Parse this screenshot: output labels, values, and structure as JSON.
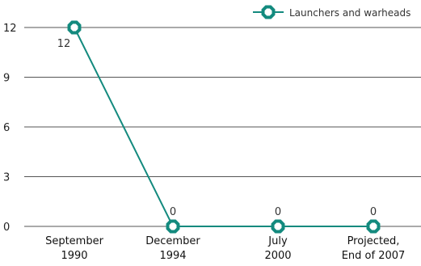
{
  "chart_data": {
    "type": "line",
    "title": "",
    "xlabel": "",
    "ylabel": "",
    "categories": [
      [
        "September",
        "1990"
      ],
      [
        "December",
        "1994"
      ],
      [
        "July",
        "2000"
      ],
      [
        "Projected,",
        "End of 2007"
      ]
    ],
    "series": [
      {
        "name": "Launchers and warheads",
        "values": [
          12,
          0,
          0,
          0
        ],
        "data_labels": [
          "12",
          "0",
          "0",
          "0"
        ],
        "color": "#138a7e",
        "marker": "octagon-ring"
      }
    ],
    "ylim": [
      0,
      12
    ],
    "yticks": [
      0,
      3,
      6,
      9,
      12
    ],
    "grid": true,
    "gridline_color": "#555555",
    "legend_position": "top-right"
  }
}
